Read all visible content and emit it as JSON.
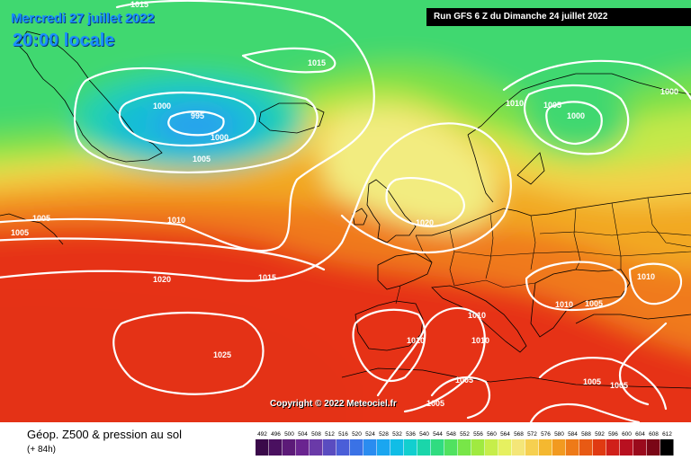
{
  "header": {
    "date": "Mercredi 27 juillet 2022",
    "time": "20:00 locale",
    "run": "Run GFS 6 Z du Dimanche 24 juillet 2022"
  },
  "copyright": "Copyright © 2022 Meteociel.fr",
  "legend": {
    "title": "Géop. Z500 & pression au sol",
    "subtitle": "(+ 84h)",
    "scale_values": [
      "492",
      "496",
      "500",
      "504",
      "508",
      "512",
      "516",
      "520",
      "524",
      "528",
      "532",
      "536",
      "540",
      "544",
      "548",
      "552",
      "556",
      "560",
      "564",
      "568",
      "572",
      "576",
      "580",
      "584",
      "588",
      "592",
      "596",
      "600",
      "604",
      "608",
      "612"
    ],
    "scale_colors": [
      "#3a0a4a",
      "#4a1060",
      "#5c1a78",
      "#6a2490",
      "#6a3aa8",
      "#5a4cc0",
      "#4a5ed8",
      "#3a72e6",
      "#2a8cf0",
      "#1aa6f0",
      "#10bde6",
      "#12cfcf",
      "#1ad6aa",
      "#30dc80",
      "#50e260",
      "#78e648",
      "#a0ea40",
      "#c6ee4a",
      "#e6f060",
      "#f4e678",
      "#f6d050",
      "#f4b830",
      "#f29a20",
      "#ee7a18",
      "#e85a14",
      "#e03a12",
      "#d0201a",
      "#b81020",
      "#9a0a1c",
      "#7a0616",
      "#000000"
    ]
  },
  "pressure_labels": [
    {
      "text": "1015"
    },
    {
      "text": "1015"
    },
    {
      "text": "1000"
    },
    {
      "text": "995"
    },
    {
      "text": "1000"
    },
    {
      "text": "1005"
    },
    {
      "text": "1010"
    },
    {
      "text": "1005"
    },
    {
      "text": "1000"
    },
    {
      "text": "1000"
    },
    {
      "text": "1005"
    },
    {
      "text": "1005"
    },
    {
      "text": "1010"
    },
    {
      "text": "1020"
    },
    {
      "text": "1015"
    },
    {
      "text": "1020"
    },
    {
      "text": "1025"
    },
    {
      "text": "1010"
    },
    {
      "text": "1010"
    },
    {
      "text": "1005"
    },
    {
      "text": "1010"
    },
    {
      "text": "1010"
    },
    {
      "text": "1010"
    },
    {
      "text": "1005"
    },
    {
      "text": "1005"
    },
    {
      "text": "1005"
    },
    {
      "text": "1005"
    }
  ]
}
